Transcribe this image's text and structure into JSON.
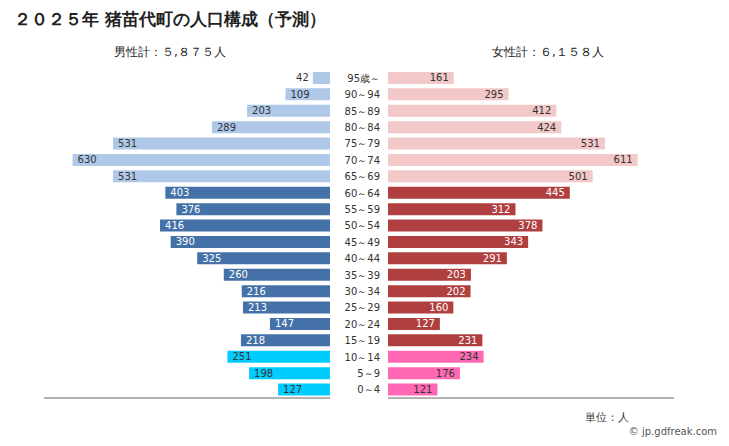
{
  "chart_data": {
    "type": "bar",
    "orientation": "horizontal",
    "title": "２０２５年 猪苗代町の人口構成（予測）",
    "categories": [
      "95歳～",
      "90～94",
      "85～89",
      "80～84",
      "75～79",
      "70～74",
      "65～69",
      "60～64",
      "55～59",
      "50～54",
      "45～49",
      "40～44",
      "35～39",
      "30～34",
      "25～29",
      "20～24",
      "15～19",
      "10～14",
      "5～9",
      "0～4"
    ],
    "series": [
      {
        "name": "男性計：５,８７５人",
        "values": [
          42,
          109,
          203,
          289,
          531,
          630,
          531,
          403,
          376,
          416,
          390,
          325,
          260,
          216,
          213,
          147,
          218,
          251,
          198,
          127
        ],
        "colors": [
          "#afc8e8",
          "#afc8e8",
          "#afc8e8",
          "#afc8e8",
          "#afc8e8",
          "#afc8e8",
          "#afc8e8",
          "#4472a8",
          "#4472a8",
          "#4472a8",
          "#4472a8",
          "#4472a8",
          "#4472a8",
          "#4472a8",
          "#4472a8",
          "#4472a8",
          "#4472a8",
          "#00ccff",
          "#00ccff",
          "#00ccff"
        ]
      },
      {
        "name": "女性計：６,１５８人",
        "values": [
          161,
          295,
          412,
          424,
          531,
          611,
          501,
          445,
          312,
          378,
          343,
          291,
          203,
          202,
          160,
          127,
          231,
          234,
          176,
          121
        ],
        "colors": [
          "#f2c8c8",
          "#f2c8c8",
          "#f2c8c8",
          "#f2c8c8",
          "#f2c8c8",
          "#f2c8c8",
          "#f2c8c8",
          "#b04040",
          "#b04040",
          "#b04040",
          "#b04040",
          "#b04040",
          "#b04040",
          "#b04040",
          "#b04040",
          "#b04040",
          "#b04040",
          "#ff69b4",
          "#ff69b4",
          "#ff69b4"
        ]
      }
    ],
    "xlim": [
      0,
      700
    ],
    "tick_labels": false,
    "data_labels": true,
    "grid": false,
    "annotations": [
      "単位：人",
      "© jp.gdfreak.com"
    ]
  }
}
